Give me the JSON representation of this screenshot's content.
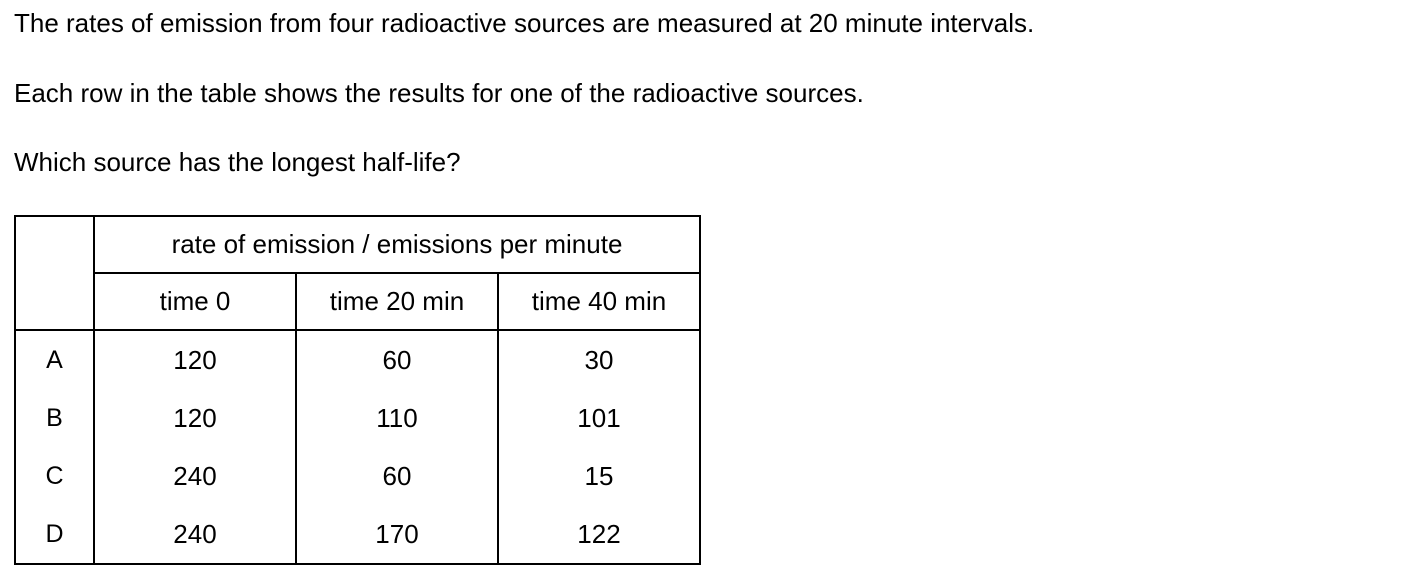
{
  "question": {
    "intro": "The rates of emission from four radioactive sources are measured at 20 minute intervals.",
    "table_note": "Each row in the table shows the results for one of the radioactive sources.",
    "prompt": "Which source has the longest half-life?"
  },
  "table": {
    "group_header": "rate of emission / emissions per minute",
    "columns": [
      "time 0",
      "time 20 min",
      "time 40 min"
    ],
    "rows": [
      {
        "label": "A",
        "values": [
          "120",
          "60",
          "30"
        ]
      },
      {
        "label": "B",
        "values": [
          "120",
          "110",
          "101"
        ]
      },
      {
        "label": "C",
        "values": [
          "240",
          "60",
          "15"
        ]
      },
      {
        "label": "D",
        "values": [
          "240",
          "170",
          "122"
        ]
      }
    ]
  }
}
